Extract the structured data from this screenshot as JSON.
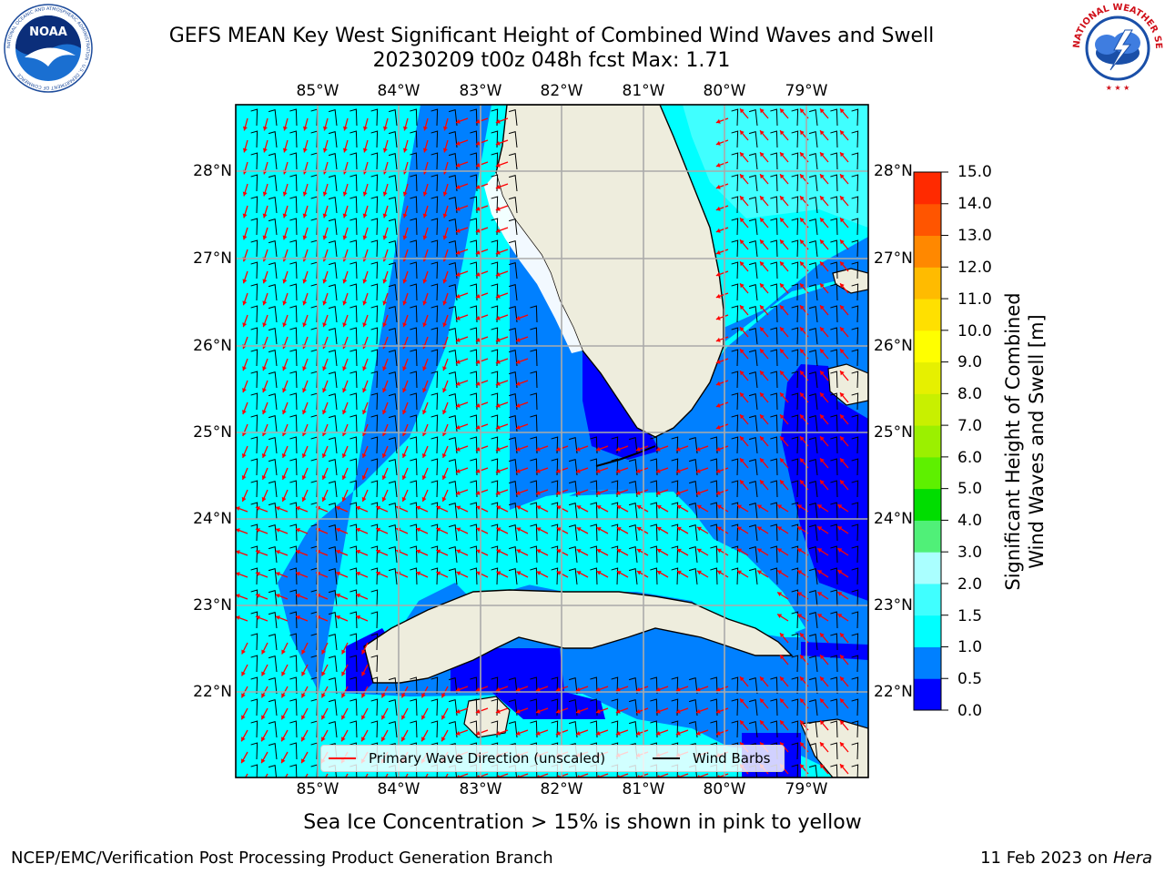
{
  "title": {
    "line1": "GEFS MEAN Key West Significant Height of Combined Wind Waves and Swell",
    "line2": "20230209 t00z 048h fcst   Max: 1.71"
  },
  "logos": [
    {
      "name": "noaa-logo",
      "text": "NOAA",
      "ring_text": "NATIONAL OCEANIC AND ATMOSPHERIC ADMINISTRATION · U.S. DEPARTMENT OF COMMERCE"
    },
    {
      "name": "nws-logo",
      "ring_text": "NATIONAL WEATHER SERVICE"
    }
  ],
  "map": {
    "lon_labels": [
      "85°W",
      "84°W",
      "83°W",
      "82°W",
      "81°W",
      "80°W",
      "79°W"
    ],
    "lat_labels": [
      "28°N",
      "27°N",
      "26°N",
      "25°N",
      "24°N",
      "23°N",
      "22°N"
    ],
    "extent": {
      "lon": [
        -86.0,
        -78.25
      ],
      "lat": [
        21.0,
        28.75
      ]
    },
    "land_color": "#eeeddd",
    "ocean_default_color": "#00ffff"
  },
  "legend": {
    "wave_direction": "Primary Wave Direction (unscaled)",
    "wind_barbs": "Wind Barbs",
    "wave_color": "#ff0000",
    "barb_color": "#000000"
  },
  "colorbar": {
    "label_line1": "Significant Height of Combined",
    "label_line2": "Wind Waves and Swell [m]",
    "ticks": [
      "0.0",
      "0.5",
      "1.0",
      "1.5",
      "2.0",
      "3.0",
      "4.0",
      "5.0",
      "6.0",
      "7.0",
      "8.0",
      "9.0",
      "10.0",
      "11.0",
      "12.0",
      "13.0",
      "14.0",
      "15.0"
    ],
    "colors": [
      "#0000ff",
      "#0080ff",
      "#00ffff",
      "#40ffff",
      "#aaffff",
      "#50f078",
      "#00dd00",
      "#5ef000",
      "#9bf000",
      "#c8f000",
      "#e6f000",
      "#ffff00",
      "#ffe000",
      "#ffbb00",
      "#ff8800",
      "#ff5500",
      "#ff2a00",
      "#ff0000"
    ]
  },
  "note": "Sea Ice Concentration > 15% is shown in pink to yellow",
  "footer": {
    "left": "NCEP/EMC/Verification Post Processing Product Generation Branch",
    "right_date": "11 Feb 2023 on ",
    "right_host": "Hera"
  }
}
